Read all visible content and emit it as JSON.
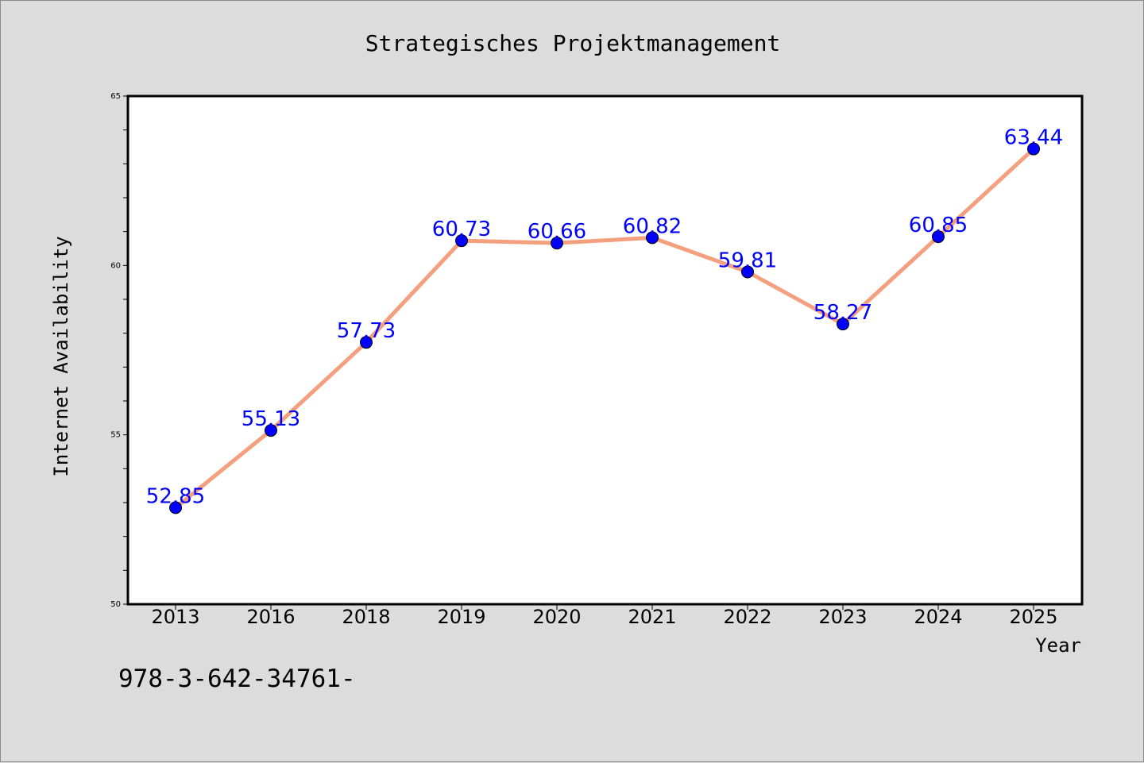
{
  "chart_data": {
    "type": "line",
    "title": "Strategisches Projektmanagement",
    "xlabel": "Year",
    "ylabel": "Internet Availability",
    "categories": [
      "2013",
      "2016",
      "2018",
      "2019",
      "2020",
      "2021",
      "2022",
      "2023",
      "2024",
      "2025"
    ],
    "series": [
      {
        "values": [
          52.85,
          55.13,
          57.73,
          60.73,
          60.66,
          60.82,
          59.81,
          58.27,
          60.85,
          63.44
        ]
      }
    ],
    "data_labels": [
      "52.85",
      "55.13",
      "57.73",
      "60.73",
      "60.66",
      "60.82",
      "59.81",
      "58.27",
      "60.85",
      "63.44"
    ],
    "ylim": [
      50,
      65
    ],
    "y_ticks": [
      "50",
      "55",
      "60",
      "65"
    ],
    "grid": false,
    "legend": "none",
    "line_color": "#f4a07e",
    "marker_color": "#0000ff",
    "label_color": "#0000ff"
  },
  "footer": {
    "text": "978-3-642-34761-"
  }
}
